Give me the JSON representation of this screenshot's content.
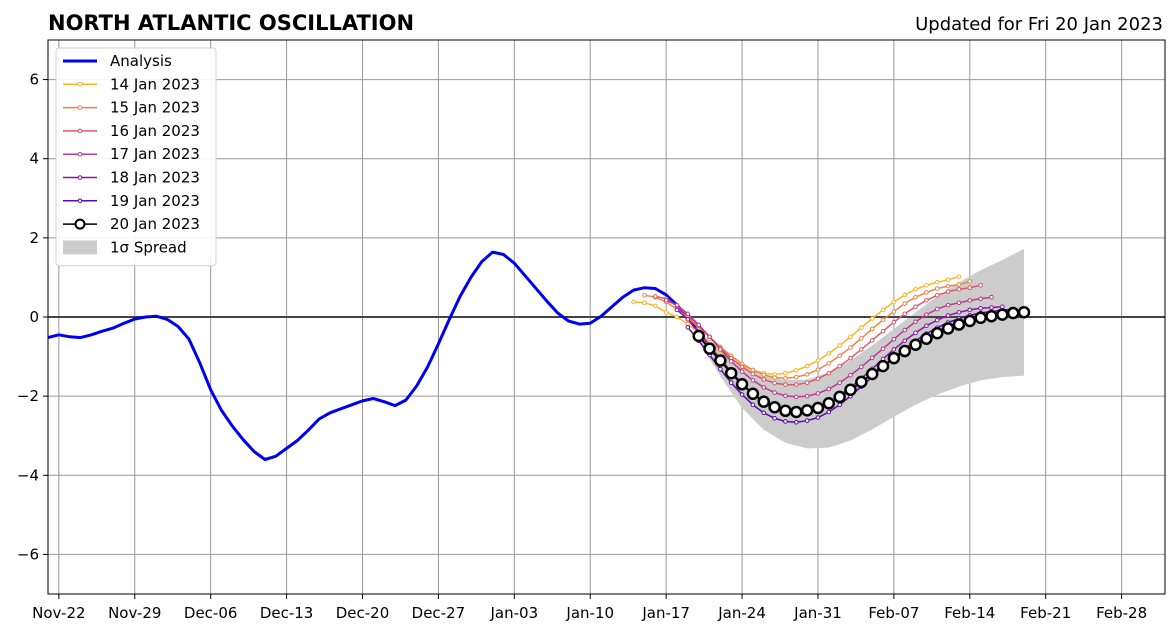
{
  "chart_data": {
    "type": "line",
    "title": "NORTH ATLANTIC OSCILLATION",
    "subtitle": "Updated for Fri 20 Jan 2023",
    "xlabel": "",
    "ylabel": "",
    "xlim": [
      "2022-11-21",
      "2023-03-04"
    ],
    "ylim": [
      -7,
      7
    ],
    "yticks": [
      -6,
      -4,
      -2,
      0,
      2,
      4,
      6
    ],
    "xticks": [
      {
        "date": "2022-11-22",
        "label": "Nov-22"
      },
      {
        "date": "2022-11-29",
        "label": "Nov-29"
      },
      {
        "date": "2022-12-06",
        "label": "Dec-06"
      },
      {
        "date": "2022-12-13",
        "label": "Dec-13"
      },
      {
        "date": "2022-12-20",
        "label": "Dec-20"
      },
      {
        "date": "2022-12-27",
        "label": "Dec-27"
      },
      {
        "date": "2023-01-03",
        "label": "Jan-03"
      },
      {
        "date": "2023-01-10",
        "label": "Jan-10"
      },
      {
        "date": "2023-01-17",
        "label": "Jan-17"
      },
      {
        "date": "2023-01-24",
        "label": "Jan-24"
      },
      {
        "date": "2023-01-31",
        "label": "Jan-31"
      },
      {
        "date": "2023-02-07",
        "label": "Feb-07"
      },
      {
        "date": "2023-02-14",
        "label": "Feb-14"
      },
      {
        "date": "2023-02-21",
        "label": "Feb-21"
      },
      {
        "date": "2023-02-28",
        "label": "Feb-28"
      }
    ],
    "grid": true,
    "zero_line": true,
    "legend_position": "top-left",
    "colors": {
      "analysis": "#0000ee",
      "ensemble": [
        "#f5b62a",
        "#ee8548",
        "#dc5968",
        "#b93a8e",
        "#8c16a3",
        "#5a0aa0"
      ],
      "latest": "#000000",
      "spread": "#cccccc",
      "grid": "#999999"
    },
    "analysis": {
      "name": "Analysis",
      "x": [
        "2022-11-21",
        "2022-11-22",
        "2022-11-23",
        "2022-11-24",
        "2022-11-25",
        "2022-11-26",
        "2022-11-27",
        "2022-11-28",
        "2022-11-29",
        "2022-11-30",
        "2022-12-01",
        "2022-12-02",
        "2022-12-03",
        "2022-12-04",
        "2022-12-05",
        "2022-12-06",
        "2022-12-07",
        "2022-12-08",
        "2022-12-09",
        "2022-12-10",
        "2022-12-11",
        "2022-12-12",
        "2022-12-13",
        "2022-12-14",
        "2022-12-15",
        "2022-12-16",
        "2022-12-17",
        "2022-12-18",
        "2022-12-19",
        "2022-12-20",
        "2022-12-21",
        "2022-12-22",
        "2022-12-23",
        "2022-12-24",
        "2022-12-25",
        "2022-12-26",
        "2022-12-27",
        "2022-12-28",
        "2022-12-29",
        "2022-12-30",
        "2022-12-31",
        "2023-01-01",
        "2023-01-02",
        "2023-01-03",
        "2023-01-04",
        "2023-01-05",
        "2023-01-06",
        "2023-01-07",
        "2023-01-08",
        "2023-01-09",
        "2023-01-10",
        "2023-01-11",
        "2023-01-12",
        "2023-01-13",
        "2023-01-14",
        "2023-01-15",
        "2023-01-16",
        "2023-01-17",
        "2023-01-18",
        "2023-01-19",
        "2023-01-20"
      ],
      "y": [
        -0.52,
        -0.45,
        -0.5,
        -0.52,
        -0.45,
        -0.36,
        -0.28,
        -0.16,
        -0.05,
        0.0,
        0.02,
        -0.06,
        -0.24,
        -0.56,
        -1.16,
        -1.84,
        -2.36,
        -2.76,
        -3.1,
        -3.4,
        -3.6,
        -3.52,
        -3.32,
        -3.12,
        -2.86,
        -2.58,
        -2.42,
        -2.32,
        -2.22,
        -2.12,
        -2.06,
        -2.14,
        -2.24,
        -2.1,
        -1.74,
        -1.26,
        -0.68,
        -0.06,
        0.52,
        1.0,
        1.4,
        1.64,
        1.58,
        1.36,
        1.04,
        0.72,
        0.4,
        0.1,
        -0.1,
        -0.18,
        -0.16,
        0.02,
        0.26,
        0.5,
        0.68,
        0.74,
        0.72,
        0.56,
        0.3,
        0.0,
        -0.4
      ]
    },
    "forecasts": [
      {
        "name": "14 Jan 2023",
        "x": [
          "2023-01-14",
          "2023-01-15",
          "2023-01-16",
          "2023-01-17",
          "2023-01-18",
          "2023-01-19",
          "2023-01-20",
          "2023-01-21",
          "2023-01-22",
          "2023-01-23",
          "2023-01-24",
          "2023-01-25",
          "2023-01-26",
          "2023-01-27",
          "2023-01-28",
          "2023-01-29",
          "2023-01-30",
          "2023-01-31",
          "2023-02-01",
          "2023-02-02",
          "2023-02-03",
          "2023-02-04",
          "2023-02-05",
          "2023-02-06",
          "2023-02-07",
          "2023-02-08",
          "2023-02-09",
          "2023-02-10",
          "2023-02-11",
          "2023-02-12",
          "2023-02-13"
        ],
        "y": [
          0.38,
          0.36,
          0.28,
          0.12,
          0.0,
          -0.18,
          -0.4,
          -0.64,
          -0.86,
          -1.06,
          -1.22,
          -1.34,
          -1.42,
          -1.45,
          -1.42,
          -1.35,
          -1.24,
          -1.1,
          -0.92,
          -0.72,
          -0.5,
          -0.27,
          -0.04,
          0.18,
          0.38,
          0.56,
          0.7,
          0.8,
          0.88,
          0.94,
          1.02
        ]
      },
      {
        "name": "15 Jan 2023",
        "x": [
          "2023-01-15",
          "2023-01-16",
          "2023-01-17",
          "2023-01-18",
          "2023-01-19",
          "2023-01-20",
          "2023-01-21",
          "2023-01-22",
          "2023-01-23",
          "2023-01-24",
          "2023-01-25",
          "2023-01-26",
          "2023-01-27",
          "2023-01-28",
          "2023-01-29",
          "2023-01-30",
          "2023-01-31",
          "2023-02-01",
          "2023-02-02",
          "2023-02-03",
          "2023-02-04",
          "2023-02-05",
          "2023-02-06",
          "2023-02-07",
          "2023-02-08",
          "2023-02-09",
          "2023-02-10",
          "2023-02-11",
          "2023-02-12",
          "2023-02-13",
          "2023-02-14"
        ],
        "y": [
          0.55,
          0.5,
          0.38,
          0.2,
          -0.02,
          -0.26,
          -0.5,
          -0.76,
          -0.98,
          -1.18,
          -1.34,
          -1.46,
          -1.53,
          -1.55,
          -1.52,
          -1.45,
          -1.33,
          -1.17,
          -0.98,
          -0.77,
          -0.54,
          -0.3,
          -0.07,
          0.14,
          0.34,
          0.5,
          0.62,
          0.72,
          0.78,
          0.82,
          0.9
        ]
      },
      {
        "name": "16 Jan 2023",
        "x": [
          "2023-01-16",
          "2023-01-17",
          "2023-01-18",
          "2023-01-19",
          "2023-01-20",
          "2023-01-21",
          "2023-01-22",
          "2023-01-23",
          "2023-01-24",
          "2023-01-25",
          "2023-01-26",
          "2023-01-27",
          "2023-01-28",
          "2023-01-29",
          "2023-01-30",
          "2023-01-31",
          "2023-02-01",
          "2023-02-02",
          "2023-02-03",
          "2023-02-04",
          "2023-02-05",
          "2023-02-06",
          "2023-02-07",
          "2023-02-08",
          "2023-02-09",
          "2023-02-10",
          "2023-02-11",
          "2023-02-12",
          "2023-02-13",
          "2023-02-14",
          "2023-02-15"
        ],
        "y": [
          0.52,
          0.46,
          0.28,
          0.04,
          -0.22,
          -0.5,
          -0.78,
          -1.04,
          -1.26,
          -1.44,
          -1.58,
          -1.67,
          -1.71,
          -1.71,
          -1.66,
          -1.56,
          -1.42,
          -1.24,
          -1.04,
          -0.82,
          -0.59,
          -0.36,
          -0.13,
          0.08,
          0.26,
          0.42,
          0.55,
          0.64,
          0.7,
          0.74,
          0.8
        ]
      },
      {
        "name": "17 Jan 2023",
        "x": [
          "2023-01-17",
          "2023-01-18",
          "2023-01-19",
          "2023-01-20",
          "2023-01-21",
          "2023-01-22",
          "2023-01-23",
          "2023-01-24",
          "2023-01-25",
          "2023-01-26",
          "2023-01-27",
          "2023-01-28",
          "2023-01-29",
          "2023-01-30",
          "2023-01-31",
          "2023-02-01",
          "2023-02-02",
          "2023-02-03",
          "2023-02-04",
          "2023-02-05",
          "2023-02-06",
          "2023-02-07",
          "2023-02-08",
          "2023-02-09",
          "2023-02-10",
          "2023-02-11",
          "2023-02-12",
          "2023-02-13",
          "2023-02-14",
          "2023-02-15",
          "2023-02-16"
        ],
        "y": [
          0.42,
          0.3,
          0.08,
          -0.2,
          -0.5,
          -0.82,
          -1.12,
          -1.38,
          -1.6,
          -1.78,
          -1.91,
          -1.99,
          -2.02,
          -2.0,
          -1.93,
          -1.82,
          -1.66,
          -1.47,
          -1.26,
          -1.03,
          -0.8,
          -0.56,
          -0.33,
          -0.12,
          0.06,
          0.2,
          0.3,
          0.36,
          0.42,
          0.46,
          0.5
        ]
      },
      {
        "name": "18 Jan 2023",
        "x": [
          "2023-01-18",
          "2023-01-19",
          "2023-01-20",
          "2023-01-21",
          "2023-01-22",
          "2023-01-23",
          "2023-01-24",
          "2023-01-25",
          "2023-01-26",
          "2023-01-27",
          "2023-01-28",
          "2023-01-29",
          "2023-01-30",
          "2023-01-31",
          "2023-02-01",
          "2023-02-02",
          "2023-02-03",
          "2023-02-04",
          "2023-02-05",
          "2023-02-06",
          "2023-02-07",
          "2023-02-08",
          "2023-02-09",
          "2023-02-10",
          "2023-02-11",
          "2023-02-12",
          "2023-02-13",
          "2023-02-14",
          "2023-02-15",
          "2023-02-16",
          "2023-02-17"
        ],
        "y": [
          0.18,
          -0.06,
          -0.38,
          -0.72,
          -1.06,
          -1.38,
          -1.68,
          -1.94,
          -2.14,
          -2.28,
          -2.36,
          -2.39,
          -2.36,
          -2.28,
          -2.15,
          -1.98,
          -1.78,
          -1.55,
          -1.31,
          -1.06,
          -0.82,
          -0.6,
          -0.4,
          -0.22,
          -0.08,
          0.04,
          0.12,
          0.18,
          0.22,
          0.24,
          0.26
        ]
      },
      {
        "name": "19 Jan 2023",
        "x": [
          "2023-01-19",
          "2023-01-20",
          "2023-01-21",
          "2023-01-22",
          "2023-01-23",
          "2023-01-24",
          "2023-01-25",
          "2023-01-26",
          "2023-01-27",
          "2023-01-28",
          "2023-01-29",
          "2023-01-30",
          "2023-01-31",
          "2023-02-01",
          "2023-02-02",
          "2023-02-03",
          "2023-02-04",
          "2023-02-05",
          "2023-02-06",
          "2023-02-07",
          "2023-02-08",
          "2023-02-09",
          "2023-02-10",
          "2023-02-11",
          "2023-02-12",
          "2023-02-13",
          "2023-02-14",
          "2023-02-15",
          "2023-02-16",
          "2023-02-17",
          "2023-02-18"
        ],
        "y": [
          -0.26,
          -0.6,
          -0.96,
          -1.32,
          -1.66,
          -1.96,
          -2.22,
          -2.42,
          -2.56,
          -2.64,
          -2.66,
          -2.62,
          -2.54,
          -2.4,
          -2.22,
          -2.0,
          -1.76,
          -1.51,
          -1.26,
          -1.02,
          -0.8,
          -0.6,
          -0.42,
          -0.27,
          -0.14,
          -0.04,
          0.04,
          0.1,
          0.14,
          0.17,
          0.2
        ]
      },
      {
        "name": "20 Jan 2023",
        "x": [
          "2023-01-20",
          "2023-01-21",
          "2023-01-22",
          "2023-01-23",
          "2023-01-24",
          "2023-01-25",
          "2023-01-26",
          "2023-01-27",
          "2023-01-28",
          "2023-01-29",
          "2023-01-30",
          "2023-01-31",
          "2023-02-01",
          "2023-02-02",
          "2023-02-03",
          "2023-02-04",
          "2023-02-05",
          "2023-02-06",
          "2023-02-07",
          "2023-02-08",
          "2023-02-09",
          "2023-02-10",
          "2023-02-11",
          "2023-02-12",
          "2023-02-13",
          "2023-02-14",
          "2023-02-15",
          "2023-02-16",
          "2023-02-17",
          "2023-02-18",
          "2023-02-19"
        ],
        "y": [
          -0.48,
          -0.8,
          -1.1,
          -1.42,
          -1.7,
          -1.94,
          -2.14,
          -2.28,
          -2.37,
          -2.4,
          -2.36,
          -2.3,
          -2.18,
          -2.02,
          -1.84,
          -1.64,
          -1.44,
          -1.24,
          -1.04,
          -0.86,
          -0.7,
          -0.55,
          -0.41,
          -0.29,
          -0.19,
          -0.1,
          -0.02,
          0.02,
          0.06,
          0.1,
          0.12
        ]
      }
    ],
    "spread": {
      "name": "1σ Spread",
      "x": [
        "2023-01-20",
        "2023-01-22",
        "2023-01-24",
        "2023-01-26",
        "2023-01-28",
        "2023-01-30",
        "2023-02-01",
        "2023-02-03",
        "2023-02-05",
        "2023-02-07",
        "2023-02-09",
        "2023-02-11",
        "2023-02-13",
        "2023-02-15",
        "2023-02-17",
        "2023-02-19"
      ],
      "upper": [
        -0.35,
        -0.82,
        -1.22,
        -1.48,
        -1.6,
        -1.58,
        -1.4,
        -1.1,
        -0.72,
        -0.3,
        0.12,
        0.52,
        0.88,
        1.18,
        1.44,
        1.72
      ],
      "lower": [
        -0.6,
        -1.5,
        -2.3,
        -2.85,
        -3.18,
        -3.32,
        -3.3,
        -3.12,
        -2.84,
        -2.52,
        -2.22,
        -1.96,
        -1.76,
        -1.6,
        -1.52,
        -1.48
      ]
    }
  }
}
